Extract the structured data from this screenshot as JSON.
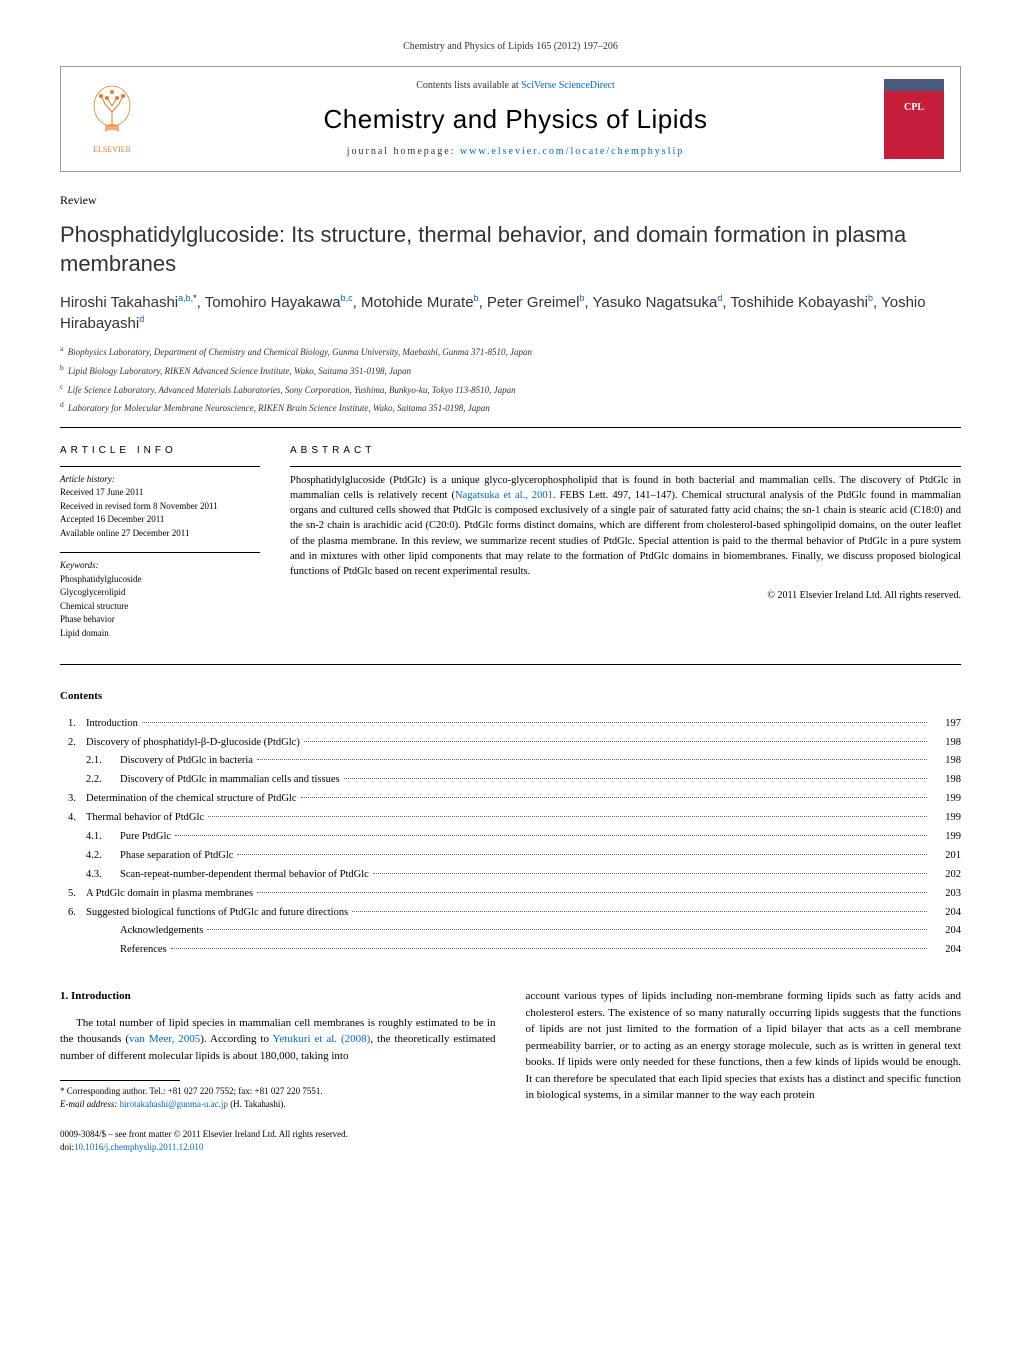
{
  "citation": "Chemistry and Physics of Lipids 165 (2012) 197–206",
  "journal_box": {
    "contents_line_prefix": "Contents lists available at ",
    "contents_link_text": "SciVerse ScienceDirect",
    "journal_title": "Chemistry and Physics of Lipids",
    "homepage_prefix": "journal homepage: ",
    "homepage_link": "www.elsevier.com/locate/chemphyslip",
    "elsevier_label": "ELSEVIER",
    "cover_label": "CPL"
  },
  "article": {
    "type": "Review",
    "title": "Phosphatidylglucoside: Its structure, thermal behavior, and domain formation in plasma membranes",
    "authors_html": "Hiroshi Takahashi<sup>a,b,</sup><sup class='asterisk'>*</sup>, Tomohiro Hayakawa<sup>b,c</sup>, Motohide Murate<sup>b</sup>, Peter Greimel<sup>b</sup>, Yasuko Nagatsuka<sup>d</sup>, Toshihide Kobayashi<sup>b</sup>, Yoshio Hirabayashi<sup>d</sup>",
    "affiliations": [
      {
        "sup": "a",
        "text": "Biophysics Laboratory, Department of Chemistry and Chemical Biology, Gunma University, Maebashi, Gunma 371-8510, Japan"
      },
      {
        "sup": "b",
        "text": "Lipid Biology Laboratory, RIKEN Advanced Science Institute, Wako, Saitama 351-0198, Japan"
      },
      {
        "sup": "c",
        "text": "Life Science Laboratory, Advanced Materials Laboratories, Sony Corporation, Yushima, Bunkyo-ku, Tokyo 113-8510, Japan"
      },
      {
        "sup": "d",
        "text": "Laboratory for Molecular Membrane Neuroscience, RIKEN Brain Science Institute, Wako, Saitama 351-0198, Japan"
      }
    ]
  },
  "info": {
    "heading": "ARTICLE INFO",
    "history_label": "Article history:",
    "history": [
      "Received 17 June 2011",
      "Received in revised form 8 November 2011",
      "Accepted 16 December 2011",
      "Available online 27 December 2011"
    ],
    "keywords_label": "Keywords:",
    "keywords": [
      "Phosphatidylglucoside",
      "Glycoglycerolipid",
      "Chemical structure",
      "Phase behavior",
      "Lipid domain"
    ]
  },
  "abstract": {
    "heading": "ABSTRACT",
    "text_parts": {
      "p1": "Phosphatidylglucoside (PtdGlc) is a unique glyco-glycerophospholipid that is found in both bacterial and mammalian cells. The discovery of PtdGlc in mammalian cells is relatively recent (",
      "ref_link": "Nagatsuka et al., 2001",
      "p2": ". FEBS Lett. 497, 141–147). Chemical structural analysis of the PtdGlc found in mammalian organs and cultured cells showed that PtdGlc is composed exclusively of a single pair of saturated fatty acid chains; the sn-1 chain is stearic acid (C18:0) and the sn-2 chain is arachidic acid (C20:0). PtdGlc forms distinct domains, which are different from cholesterol-based sphingolipid domains, on the outer leaflet of the plasma membrane. In this review, we summarize recent studies of PtdGlc. Special attention is paid to the thermal behavior of PtdGlc in a pure system and in mixtures with other lipid components that may relate to the formation of PtdGlc domains in biomembranes. Finally, we discuss proposed biological functions of PtdGlc based on recent experimental results."
    },
    "copyright": "© 2011 Elsevier Ireland Ltd. All rights reserved."
  },
  "contents": {
    "heading": "Contents",
    "items": [
      {
        "num": "1.",
        "indent": 0,
        "label": "Introduction",
        "page": "197"
      },
      {
        "num": "2.",
        "indent": 0,
        "label": "Discovery of phosphatidyl-β-D-glucoside (PtdGlc)",
        "page": "198"
      },
      {
        "num": "2.1.",
        "indent": 1,
        "label": "Discovery of PtdGlc in bacteria",
        "page": "198"
      },
      {
        "num": "2.2.",
        "indent": 1,
        "label": "Discovery of PtdGlc in mammalian cells and tissues",
        "page": "198"
      },
      {
        "num": "3.",
        "indent": 0,
        "label": "Determination of the chemical structure of PtdGlc",
        "page": "199"
      },
      {
        "num": "4.",
        "indent": 0,
        "label": "Thermal behavior of PtdGlc",
        "page": "199"
      },
      {
        "num": "4.1.",
        "indent": 1,
        "label": "Pure PtdGlc",
        "page": "199"
      },
      {
        "num": "4.2.",
        "indent": 1,
        "label": "Phase separation of PtdGlc",
        "page": "201"
      },
      {
        "num": "4.3.",
        "indent": 1,
        "label": "Scan-repeat-number-dependent thermal behavior of PtdGlc",
        "page": "202"
      },
      {
        "num": "5.",
        "indent": 0,
        "label": "A PtdGlc domain in plasma membranes",
        "page": "203"
      },
      {
        "num": "6.",
        "indent": 0,
        "label": "Suggested biological functions of PtdGlc and future directions",
        "page": "204"
      },
      {
        "num": "",
        "indent": 1,
        "label": "Acknowledgements",
        "page": "204"
      },
      {
        "num": "",
        "indent": 1,
        "label": "References",
        "page": "204"
      }
    ]
  },
  "body": {
    "section_heading": "1. Introduction",
    "left": {
      "p1a": "The total number of lipid species in mammalian cell membranes is roughly estimated to be in the thousands (",
      "ref1": "van Meer, 2005",
      "p1b": "). According to ",
      "ref2": "Yetukuri et al. (2008)",
      "p1c": ", the theoretically estimated number of different molecular lipids is about 180,000, taking into"
    },
    "right": {
      "p1": "account various types of lipids including non-membrane forming lipids such as fatty acids and cholesterol esters. The existence of so many naturally occurring lipids suggests that the functions of lipids are not just limited to the formation of a lipid bilayer that acts as a cell membrane permeability barrier, or to acting as an energy storage molecule, such as is written in general text books. If lipids were only needed for these functions, then a few kinds of lipids would be enough. It can therefore be speculated that each lipid species that exists has a distinct and specific function in biological systems, in a similar manner to the way each protein"
    }
  },
  "footnote": {
    "corr_label": "* Corresponding author. Tel.: +81 027 220 7552; fax: +81 027 220 7551.",
    "email_label": "E-mail address: ",
    "email": "hirotakahashi@gunma-u.ac.jp",
    "email_suffix": " (H. Takahashi)."
  },
  "footer": {
    "line1": "0009-3084/$ – see front matter © 2011 Elsevier Ireland Ltd. All rights reserved.",
    "doi_prefix": "doi:",
    "doi": "10.1016/j.chemphyslip.2011.12.010"
  },
  "colors": {
    "link": "#0066cc",
    "elsevier_orange": "#e67c2a",
    "cover_red": "#c41e3a",
    "cover_top": "#4a5a7a"
  }
}
